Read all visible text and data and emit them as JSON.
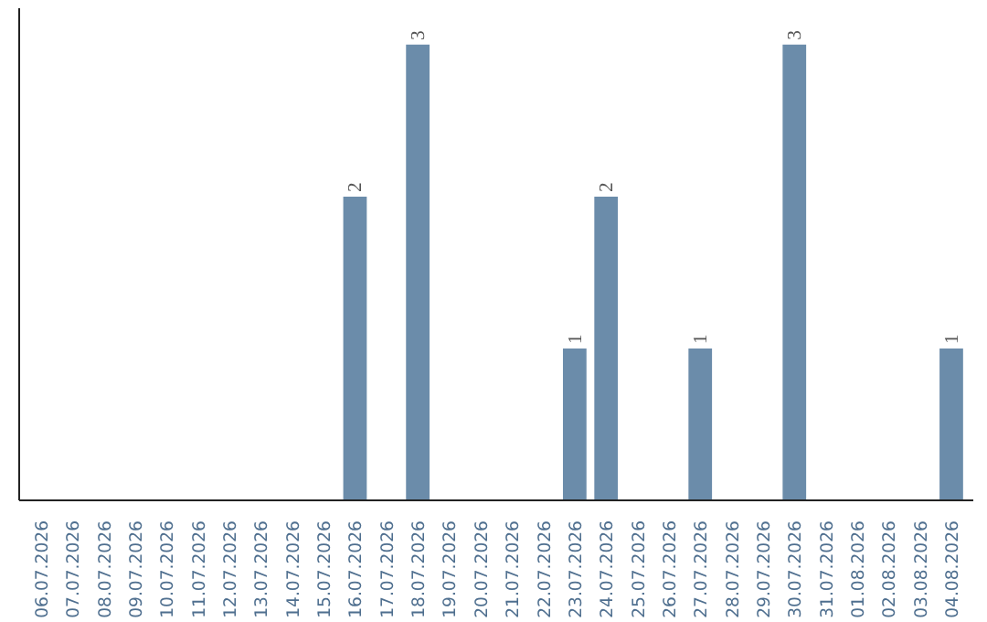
{
  "chart_data": {
    "type": "bar",
    "categories": [
      "06.07.2026",
      "07.07.2026",
      "08.07.2026",
      "09.07.2026",
      "10.07.2026",
      "11.07.2026",
      "12.07.2026",
      "13.07.2026",
      "14.07.2026",
      "15.07.2026",
      "16.07.2026",
      "17.07.2026",
      "18.07.2026",
      "19.07.2026",
      "20.07.2026",
      "21.07.2026",
      "22.07.2026",
      "23.07.2026",
      "24.07.2026",
      "25.07.2026",
      "26.07.2026",
      "27.07.2026",
      "28.07.2026",
      "29.07.2026",
      "30.07.2026",
      "31.07.2026",
      "01.08.2026",
      "02.08.2026",
      "03.08.2026",
      "04.08.2026"
    ],
    "values": [
      0,
      0,
      0,
      0,
      0,
      0,
      0,
      0,
      0,
      0,
      2,
      0,
      3,
      0,
      0,
      0,
      0,
      1,
      2,
      0,
      0,
      1,
      0,
      0,
      3,
      0,
      0,
      0,
      0,
      1
    ],
    "value_labels": [
      null,
      null,
      null,
      null,
      null,
      null,
      null,
      null,
      null,
      null,
      "2",
      null,
      "3",
      null,
      null,
      null,
      null,
      "1",
      "2",
      null,
      null,
      "1",
      null,
      null,
      "3",
      null,
      null,
      null,
      null,
      "1"
    ],
    "color": "#6b8caa",
    "tick_labels": "x",
    "grid": false
  }
}
